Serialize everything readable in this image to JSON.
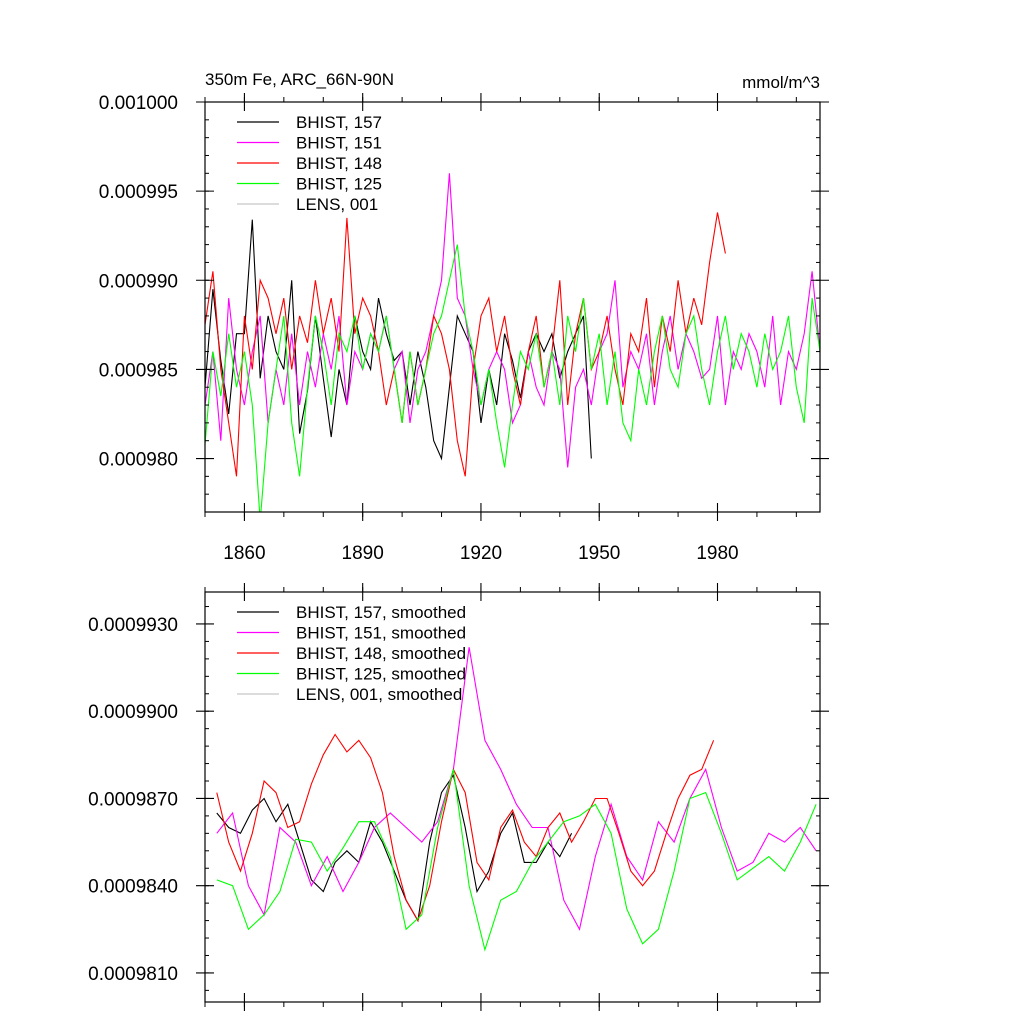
{
  "chart_data": [
    {
      "type": "line",
      "title": "350m Fe, ARC_66N-90N",
      "units_label": "mmol/m^3",
      "xlabel": "",
      "ylabel": "",
      "xlim": [
        1850,
        2006
      ],
      "ylim": [
        0.000977,
        0.001
      ],
      "xticks": [
        1860,
        1890,
        1920,
        1950,
        1980
      ],
      "yticks": [
        0.00098,
        0.000985,
        0.00099,
        0.000995,
        0.001
      ],
      "ytick_labels": [
        "0.000980",
        "0.000985",
        "0.000990",
        "0.000995",
        "0.001000"
      ],
      "show_xtick_labels": true,
      "legend": [
        "BHIST, 157",
        "BHIST, 151",
        "BHIST, 148",
        "BHIST, 125",
        "LENS, 001"
      ],
      "legend_position": "top-left",
      "series": [
        {
          "name": "BHIST, 157",
          "color": "#000000",
          "x_start": 1850,
          "x_step": 2,
          "values": [
            0.000984,
            0.0009895,
            0.0009855,
            0.0009825,
            0.000987,
            0.000987,
            0.0009934,
            0.0009845,
            0.000988,
            0.000986,
            0.000985,
            0.00099,
            0.0009814,
            0.0009838,
            0.000988,
            0.0009845,
            0.0009812,
            0.000985,
            0.000983,
            0.000988,
            0.000986,
            0.000985,
            0.000989,
            0.000987,
            0.0009855,
            0.000986,
            0.000983,
            0.000986,
            0.000984,
            0.000981,
            0.00098,
            0.000984,
            0.000988,
            0.000987,
            0.000986,
            0.000982,
            0.000985,
            0.000983,
            0.000987,
            0.0009855,
            0.0009834,
            0.000986,
            0.000987,
            0.000986,
            0.000987,
            0.0009845,
            0.000986,
            0.000987,
            0.000988,
            0.00098
          ]
        },
        {
          "name": "BHIST, 151",
          "color": "#ff00ff",
          "x_start": 1850,
          "x_step": 2,
          "values": [
            0.000983,
            0.000986,
            0.000981,
            0.000989,
            0.000985,
            0.000983,
            0.000986,
            0.000988,
            0.000982,
            0.000985,
            0.000983,
            0.000987,
            0.000983,
            0.000986,
            0.000984,
            0.000987,
            0.000985,
            0.000988,
            0.000983,
            0.000986,
            0.000985,
            0.000987,
            0.000986,
            0.000988,
            0.000985,
            0.000986,
            0.000982,
            0.000985,
            0.000986,
            0.000988,
            0.00099,
            0.000996,
            0.000989,
            0.000988,
            0.000985,
            0.000983,
            0.000985,
            0.000986,
            0.000985,
            0.000982,
            0.000983,
            0.000986,
            0.000984,
            0.000983,
            0.000986,
            0.000985,
            0.0009795,
            0.000984,
            0.000985,
            0.000983,
            0.000986,
            0.000987,
            0.00099,
            0.000984,
            0.000986,
            0.000985,
            0.000987,
            0.000983,
            0.000986,
            0.000988,
            0.000985,
            0.000987,
            0.000986,
            0.0009845,
            0.000985,
            0.000988,
            0.000983,
            0.000986,
            0.000985,
            0.000987,
            0.000986,
            0.000984,
            0.000988,
            0.000983,
            0.000986,
            0.000985,
            0.000987,
            0.0009905,
            0.000986
          ]
        },
        {
          "name": "BHIST, 148",
          "color": "#ff0000",
          "x_start": 1850,
          "x_step": 2,
          "values": [
            0.0009875,
            0.0009905,
            0.000985,
            0.000982,
            0.000979,
            0.000988,
            0.000985,
            0.00099,
            0.000989,
            0.000987,
            0.000989,
            0.000985,
            0.000988,
            0.0009865,
            0.00099,
            0.000987,
            0.000989,
            0.000986,
            0.0009935,
            0.000987,
            0.000989,
            0.000988,
            0.000986,
            0.000983,
            0.000985,
            0.000982,
            0.000986,
            0.000983,
            0.000985,
            0.000988,
            0.000987,
            0.000985,
            0.000981,
            0.000979,
            0.000985,
            0.000988,
            0.000989,
            0.000986,
            0.000988,
            0.000985,
            0.000983,
            0.000986,
            0.000988,
            0.000984,
            0.000986,
            0.00099,
            0.000983,
            0.000987,
            0.000989,
            0.000985,
            0.000986,
            0.000988,
            0.000985,
            0.000983,
            0.000987,
            0.000986,
            0.000989,
            0.000984,
            0.000988,
            0.000986,
            0.00099,
            0.000987,
            0.000989,
            0.0009875,
            0.000991,
            0.0009938,
            0.0009915
          ]
        },
        {
          "name": "BHIST, 125",
          "color": "#00ff00",
          "x_start": 1850,
          "x_step": 2,
          "values": [
            0.0009808,
            0.000986,
            0.0009835,
            0.000987,
            0.000984,
            0.000986,
            0.000983,
            0.0009765,
            0.000982,
            0.000985,
            0.000988,
            0.000982,
            0.000979,
            0.000984,
            0.000988,
            0.000986,
            0.000983,
            0.000987,
            0.000986,
            0.000988,
            0.000985,
            0.000987,
            0.000986,
            0.000988,
            0.000985,
            0.000982,
            0.000986,
            0.000983,
            0.000985,
            0.000987,
            0.000988,
            0.00099,
            0.000992,
            0.000988,
            0.000986,
            0.000983,
            0.000985,
            0.000982,
            0.0009795,
            0.000983,
            0.000986,
            0.000985,
            0.000987,
            0.000984,
            0.000986,
            0.000983,
            0.000988,
            0.000986,
            0.000989,
            0.000985,
            0.000987,
            0.000983,
            0.000986,
            0.000982,
            0.000981,
            0.000985,
            0.000983,
            0.000986,
            0.000988,
            0.000985,
            0.000984,
            0.000987,
            0.000988,
            0.000985,
            0.000983,
            0.000986,
            0.000988,
            0.000985,
            0.000987,
            0.000986,
            0.000984,
            0.000987,
            0.000985,
            0.000986,
            0.000988,
            0.000984,
            0.000982,
            0.000989,
            0.000986
          ]
        },
        {
          "name": "LENS, 001",
          "color": "#c8c8c8",
          "values": []
        }
      ]
    },
    {
      "type": "line",
      "title": "",
      "xlim": [
        1850,
        2006
      ],
      "ylim": [
        0.00098,
        0.0009941
      ],
      "xticks": [
        1860,
        1890,
        1920,
        1950,
        1980
      ],
      "yticks": [
        0.000981,
        0.000984,
        0.000987,
        0.00099,
        0.000993
      ],
      "ytick_labels": [
        "0.0009810",
        "0.0009840",
        "0.0009870",
        "0.0009900",
        "0.0009930"
      ],
      "show_xtick_labels": false,
      "legend": [
        "BHIST, 157, smoothed",
        "BHIST, 151, smoothed",
        "BHIST, 148, smoothed",
        "BHIST, 125, smoothed",
        "LENS, 001, smoothed"
      ],
      "legend_position": "top-left",
      "series": [
        {
          "name": "BHIST, 157, smoothed",
          "color": "#000000",
          "x": [
            1853,
            1856,
            1859,
            1862,
            1865,
            1868,
            1871,
            1874,
            1877,
            1880,
            1883,
            1886,
            1889,
            1892,
            1895,
            1898,
            1901,
            1904,
            1907,
            1910,
            1913,
            1916,
            1919,
            1922,
            1925,
            1928,
            1931,
            1934,
            1937,
            1940,
            1943
          ],
          "values": [
            0.0009865,
            0.000986,
            0.0009858,
            0.0009866,
            0.000987,
            0.0009862,
            0.0009868,
            0.0009855,
            0.0009842,
            0.0009838,
            0.0009848,
            0.0009852,
            0.0009848,
            0.0009862,
            0.0009855,
            0.0009845,
            0.0009835,
            0.0009828,
            0.0009855,
            0.0009872,
            0.0009878,
            0.000986,
            0.0009838,
            0.0009845,
            0.0009858,
            0.0009865,
            0.0009848,
            0.0009848,
            0.0009855,
            0.000985,
            0.0009858
          ]
        },
        {
          "name": "BHIST, 151, smoothed",
          "color": "#ff00ff",
          "x": [
            1853,
            1857,
            1861,
            1865,
            1869,
            1873,
            1877,
            1881,
            1885,
            1889,
            1893,
            1897,
            1901,
            1905,
            1909,
            1913,
            1917,
            1921,
            1925,
            1929,
            1933,
            1937,
            1941,
            1945,
            1949,
            1953,
            1957,
            1961,
            1965,
            1969,
            1973,
            1977,
            1981,
            1985,
            1989,
            1993,
            1997,
            2001,
            2005
          ],
          "values": [
            0.0009858,
            0.0009865,
            0.000984,
            0.000983,
            0.000986,
            0.0009855,
            0.000984,
            0.000985,
            0.0009838,
            0.0009848,
            0.000986,
            0.0009865,
            0.000986,
            0.0009855,
            0.0009862,
            0.000988,
            0.0009922,
            0.000989,
            0.000988,
            0.0009868,
            0.000986,
            0.000986,
            0.0009835,
            0.0009825,
            0.000985,
            0.0009868,
            0.000985,
            0.0009842,
            0.0009862,
            0.0009855,
            0.000987,
            0.000988,
            0.000986,
            0.0009845,
            0.0009848,
            0.0009858,
            0.0009855,
            0.000986,
            0.0009852
          ]
        },
        {
          "name": "BHIST, 148, smoothed",
          "color": "#ff0000",
          "x": [
            1853,
            1856,
            1859,
            1862,
            1865,
            1868,
            1871,
            1874,
            1877,
            1880,
            1883,
            1886,
            1889,
            1892,
            1895,
            1898,
            1901,
            1904,
            1907,
            1910,
            1913,
            1916,
            1919,
            1922,
            1925,
            1928,
            1931,
            1934,
            1937,
            1940,
            1943,
            1946,
            1949,
            1952,
            1955,
            1958,
            1961,
            1964,
            1967,
            1970,
            1973,
            1976,
            1979
          ],
          "values": [
            0.0009872,
            0.0009855,
            0.0009845,
            0.0009858,
            0.0009876,
            0.0009872,
            0.000986,
            0.0009862,
            0.0009875,
            0.0009885,
            0.0009892,
            0.0009886,
            0.000989,
            0.0009884,
            0.0009872,
            0.000985,
            0.0009835,
            0.0009828,
            0.000984,
            0.0009862,
            0.000988,
            0.0009872,
            0.0009848,
            0.0009842,
            0.000986,
            0.0009866,
            0.0009855,
            0.000985,
            0.000986,
            0.0009865,
            0.0009855,
            0.0009862,
            0.000987,
            0.000987,
            0.0009858,
            0.0009845,
            0.000984,
            0.0009845,
            0.0009858,
            0.000987,
            0.0009878,
            0.000988,
            0.000989
          ]
        },
        {
          "name": "BHIST, 125, smoothed",
          "color": "#00ff00",
          "x": [
            1853,
            1857,
            1861,
            1865,
            1869,
            1873,
            1877,
            1881,
            1885,
            1889,
            1893,
            1897,
            1901,
            1905,
            1909,
            1913,
            1917,
            1921,
            1925,
            1929,
            1933,
            1937,
            1941,
            1945,
            1949,
            1953,
            1957,
            1961,
            1965,
            1969,
            1973,
            1977,
            1981,
            1985,
            1989,
            1993,
            1997,
            2001,
            2005
          ],
          "values": [
            0.0009842,
            0.000984,
            0.0009825,
            0.000983,
            0.0009838,
            0.0009856,
            0.0009855,
            0.0009845,
            0.0009853,
            0.0009862,
            0.0009862,
            0.000985,
            0.0009825,
            0.000983,
            0.000986,
            0.000988,
            0.000984,
            0.0009818,
            0.0009835,
            0.0009838,
            0.0009848,
            0.0009855,
            0.0009862,
            0.0009864,
            0.0009868,
            0.0009858,
            0.0009832,
            0.000982,
            0.0009825,
            0.0009845,
            0.000987,
            0.0009872,
            0.0009858,
            0.0009842,
            0.0009846,
            0.000985,
            0.0009845,
            0.0009855,
            0.0009868
          ]
        },
        {
          "name": "LENS, 001, smoothed",
          "color": "#c8c8c8",
          "values": []
        }
      ]
    }
  ]
}
